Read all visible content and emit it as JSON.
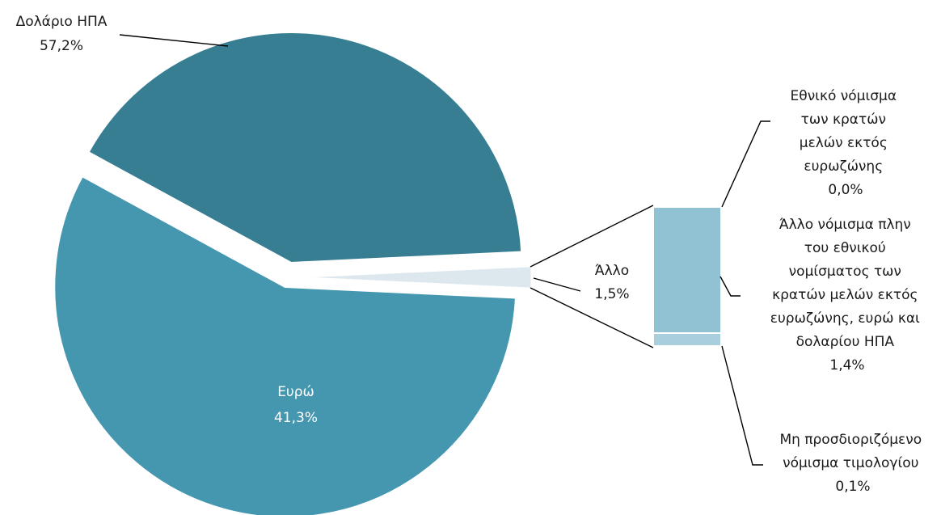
{
  "chart_data": {
    "type": "pie",
    "subtype": "bar-of-pie",
    "slices": [
      {
        "label": "Δολάριο ΗΠΑ",
        "value": 57.2,
        "value_text": "57,2%",
        "color": "#4597B0"
      },
      {
        "label": "Ευρώ",
        "value": 41.3,
        "value_text": "41,3%",
        "color": "#377E93"
      },
      {
        "label": "Άλλο",
        "value": 1.5,
        "value_text": "1,5%",
        "color": "#DDE8EE"
      }
    ],
    "breakdown": [
      {
        "label_lines": [
          "Εθνικό νόμισμα",
          "των κρατών",
          "μελών εκτός",
          "ευρωζώνης"
        ],
        "value": 0.0,
        "value_text": "0,0%",
        "color": "#91C2D3"
      },
      {
        "label_lines": [
          "Άλλο νόμισμα πλην",
          "του εθνικού",
          "νομίσματος των",
          "κρατών μελών εκτός",
          "ευρωζώνης, ευρώ και",
          "δολαρίου ΗΠΑ"
        ],
        "value": 1.4,
        "value_text": "1,4%",
        "color": "#91C2D3"
      },
      {
        "label_lines": [
          "Μη προσδιοριζόμενο",
          "νόμισμα τιμολογίου"
        ],
        "value": 0.1,
        "value_text": "0,1%",
        "color": "#A9CFDD"
      }
    ]
  }
}
